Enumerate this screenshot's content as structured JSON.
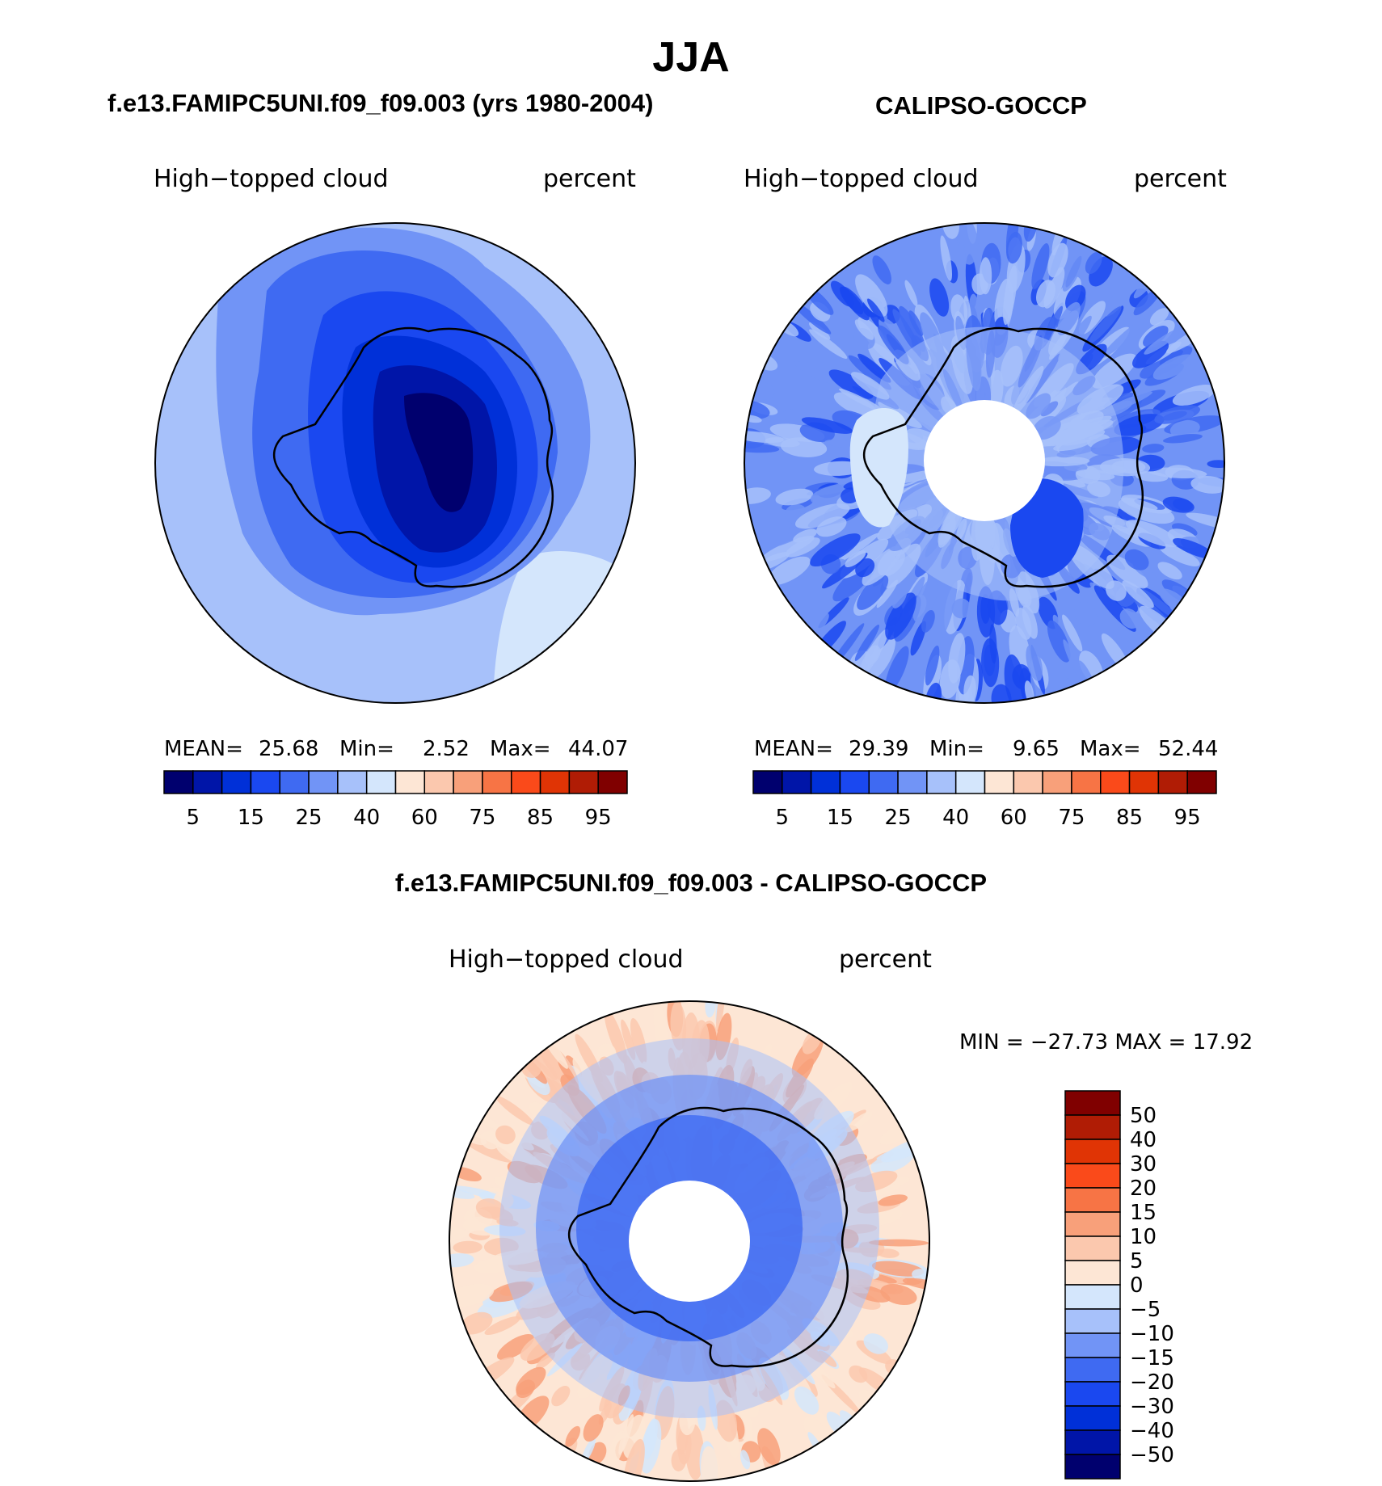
{
  "figure": {
    "season": "JJA",
    "panels": [
      {
        "title": "f.e13.FAMIPC5UNI.f09_f09.003 (yrs 1980-2004)",
        "variable": "High−topped cloud",
        "units": "percent",
        "stats": {
          "mean_label": "MEAN=",
          "mean": "25.68",
          "min_label": "Min=",
          "min": "2.52",
          "max_label": "Max=",
          "max": "44.07"
        }
      },
      {
        "title": "CALIPSO-GOCCP",
        "variable": "High−topped cloud",
        "units": "percent",
        "stats": {
          "mean_label": "MEAN=",
          "mean": "29.39",
          "min_label": "Min=",
          "min": "9.65",
          "max_label": "Max=",
          "max": "52.44"
        }
      },
      {
        "title": "f.e13.FAMIPC5UNI.f09_f09.003 - CALIPSO-GOCCP",
        "variable": "High−topped cloud",
        "units": "percent",
        "minmax": "MIN = −27.73 MAX =   17.92"
      }
    ],
    "colorbar_abs": {
      "colors": [
        "#00006e",
        "#0015a8",
        "#0030d8",
        "#1a48f0",
        "#3f6af2",
        "#7194f6",
        "#a7c1fa",
        "#d4e6fc",
        "#fde6d5",
        "#fbc8ae",
        "#f8a07a",
        "#f77445",
        "#fa4a1a",
        "#e03405",
        "#b01c05",
        "#800000"
      ],
      "tick_labels": [
        "5",
        "15",
        "25",
        "40",
        "60",
        "75",
        "85",
        "95"
      ]
    },
    "colorbar_diff": {
      "colors": [
        "#00006e",
        "#0015a8",
        "#0030d8",
        "#1a48f0",
        "#3f6af2",
        "#7194f6",
        "#a7c1fa",
        "#d4e6fc",
        "#fde6d5",
        "#fbc8ae",
        "#f8a07a",
        "#f77445",
        "#fa4a1a",
        "#e03405",
        "#b01c05",
        "#800000"
      ],
      "tick_labels": [
        "−50",
        "−40",
        "−30",
        "−20",
        "−15",
        "−10",
        "−5",
        "0",
        "5",
        "10",
        "15",
        "20",
        "30",
        "40",
        "50"
      ]
    }
  }
}
